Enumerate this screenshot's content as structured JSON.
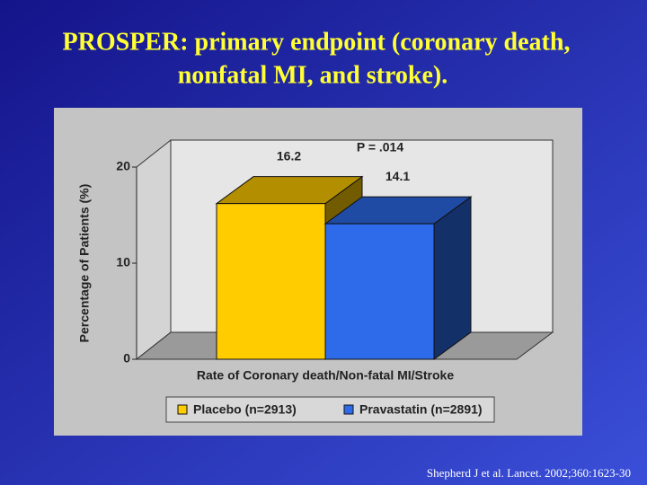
{
  "chart_data": {
    "type": "bar3d",
    "title": [
      "PROSPER: primary endpoint (coronary death,",
      "nonfatal MI, and stroke)."
    ],
    "x_label": "Rate of Coronary death/Non-fatal MI/Stroke",
    "y_label": "Percentage of Patients (%)",
    "annotation": "P = .014",
    "categories": [
      null
    ],
    "series": [
      {
        "name": "Placebo (n=2913)",
        "color": "#ffcc00",
        "values": [
          16.2
        ]
      },
      {
        "name": "Pravastatin (n=2891)",
        "color": "#2d6bea",
        "values": [
          14.1
        ]
      }
    ],
    "ylim": [
      0,
      20
    ],
    "yticks": [
      0,
      10,
      20
    ],
    "source": "Shepherd J et al. Lancet. 2002;360:1623-30"
  }
}
